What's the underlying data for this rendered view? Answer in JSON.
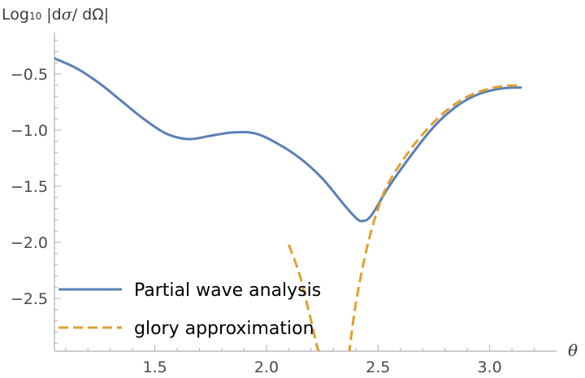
{
  "chart_data": {
    "type": "line",
    "ylabel_parts": [
      "Log",
      "10",
      " |d",
      "σ",
      "/ d",
      "Ω",
      "|"
    ],
    "xlabel": "θ",
    "xlim": [
      1.05,
      3.3
    ],
    "ylim": [
      -2.97,
      -0.13
    ],
    "x_ticks": [
      {
        "value": 1.5,
        "label": "1.5"
      },
      {
        "value": 2.0,
        "label": "2.0"
      },
      {
        "value": 2.5,
        "label": "2.5"
      },
      {
        "value": 3.0,
        "label": "3.0"
      }
    ],
    "y_ticks": [
      {
        "value": -0.5,
        "label": "-0.5"
      },
      {
        "value": -1.0,
        "label": "-1.0"
      },
      {
        "value": -1.5,
        "label": "-1.5"
      },
      {
        "value": -2.0,
        "label": "-2.0"
      },
      {
        "value": -2.5,
        "label": "-2.5"
      }
    ],
    "series": [
      {
        "name": "Partial wave analysis",
        "color": "#5b7fb5",
        "style": "solid",
        "x": [
          1.05,
          1.15,
          1.25,
          1.35,
          1.45,
          1.55,
          1.65,
          1.75,
          1.85,
          1.95,
          2.05,
          2.15,
          2.25,
          2.35,
          2.4,
          2.43,
          2.47,
          2.55,
          2.65,
          2.75,
          2.85,
          2.95,
          3.05,
          3.14
        ],
        "y": [
          -0.36,
          -0.45,
          -0.58,
          -0.74,
          -0.9,
          -1.03,
          -1.08,
          -1.05,
          -1.02,
          -1.03,
          -1.12,
          -1.25,
          -1.43,
          -1.67,
          -1.78,
          -1.81,
          -1.76,
          -1.5,
          -1.22,
          -0.97,
          -0.79,
          -0.68,
          -0.63,
          -0.62
        ]
      },
      {
        "name": "glory approximation",
        "color": "#e0a030",
        "style": "dashed",
        "segments": [
          {
            "x": [
              2.1,
              2.15,
              2.2,
              2.23,
              2.25
            ],
            "y": [
              -2.02,
              -2.3,
              -2.7,
              -2.95,
              -3.0
            ]
          },
          {
            "x": [
              2.37,
              2.4,
              2.45,
              2.5,
              2.55,
              2.65,
              2.75,
              2.85,
              2.95,
              3.05,
              3.14
            ],
            "y": [
              -3.0,
              -2.55,
              -2.05,
              -1.7,
              -1.46,
              -1.16,
              -0.93,
              -0.76,
              -0.66,
              -0.61,
              -0.6
            ]
          }
        ]
      }
    ],
    "legend_position": "bottom-left"
  }
}
